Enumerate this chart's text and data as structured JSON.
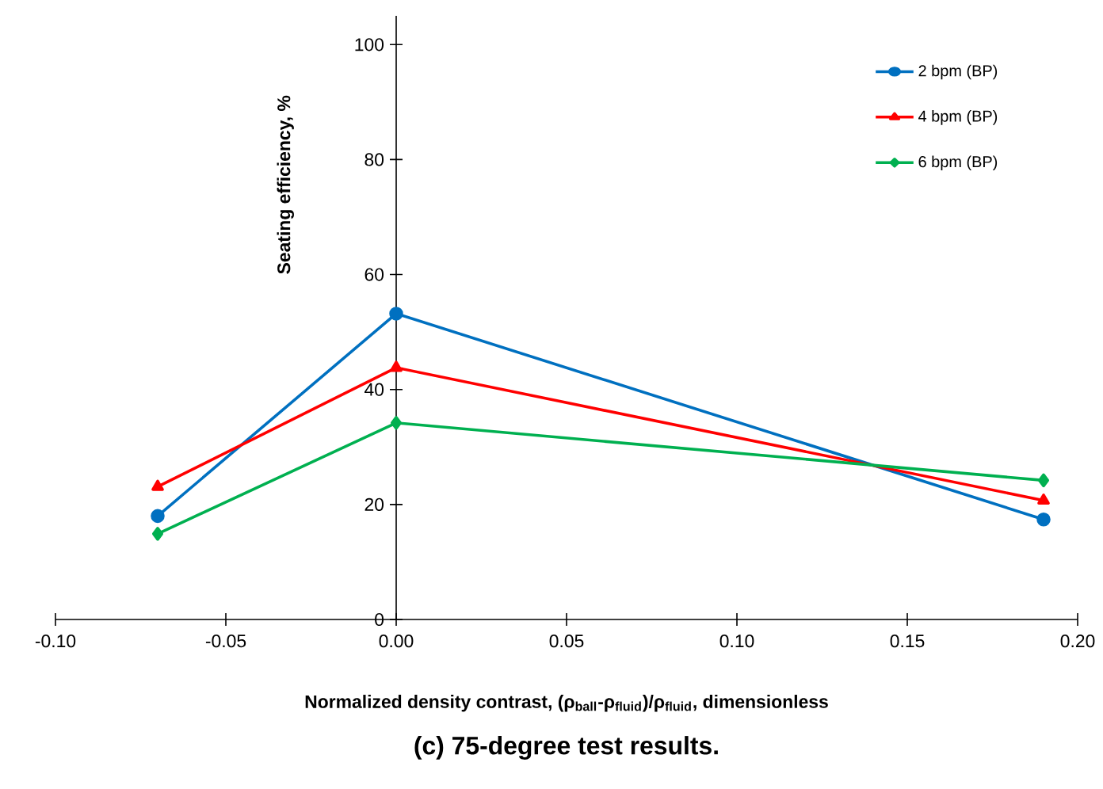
{
  "chart_data": {
    "type": "line",
    "title": "(c) 75-degree test results.",
    "xlabel": "Normalized density contrast, (ρ$_{ball}$-ρ$_{fluid}$)/ρ$_{fluid}$, dimensionless",
    "ylabel": "Seating efficiency, %",
    "x": [
      -0.07,
      0,
      0.19
    ],
    "series": [
      {
        "name": "2 bpm (BP)",
        "color": "#0070c0",
        "marker": "circle",
        "values": [
          18,
          53.2,
          17.4
        ]
      },
      {
        "name": "4 bpm (BP)",
        "color": "#ff0000",
        "marker": "triangle",
        "values": [
          23.1,
          43.8,
          20.7
        ]
      },
      {
        "name": "6 bpm (BP)",
        "color": "#00b050",
        "marker": "diamond",
        "values": [
          14.9,
          34.2,
          24.2
        ]
      }
    ],
    "xlim": [
      -0.1,
      0.2
    ],
    "xticks": [
      {
        "value": -0.1,
        "label": "-0.10"
      },
      {
        "value": -0.05,
        "label": "-0.05"
      },
      {
        "value": 0,
        "label": "0.00"
      },
      {
        "value": 0.05,
        "label": "0.05"
      },
      {
        "value": 0.1,
        "label": "0.10"
      },
      {
        "value": 0.15,
        "label": "0.15"
      },
      {
        "value": 0.2,
        "label": "0.20"
      }
    ],
    "ylim": [
      0,
      105
    ],
    "yticks": [
      0,
      20,
      40,
      60,
      80,
      100
    ],
    "grid": false,
    "legend": "top right",
    "line_style": "solid"
  }
}
